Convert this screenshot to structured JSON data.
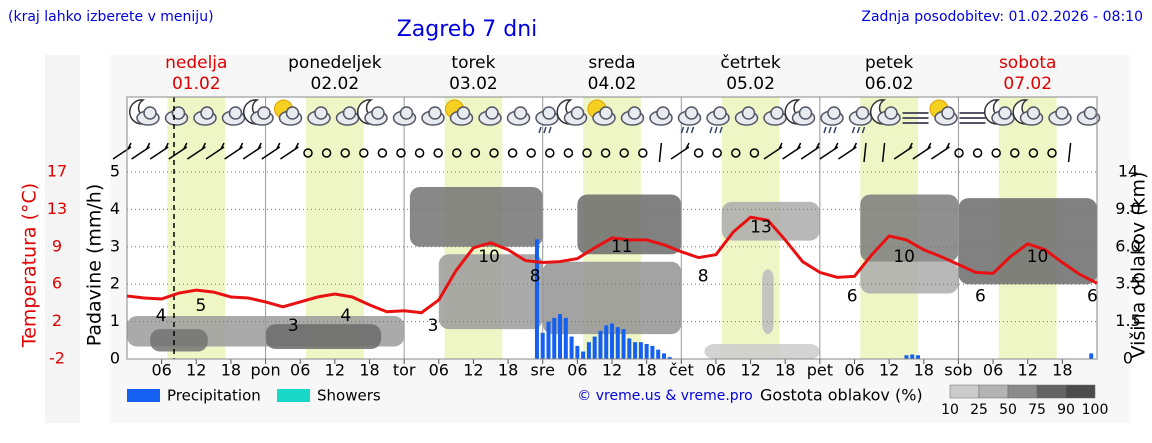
{
  "header": {
    "note": "(kraj lahko izberete v meniju)",
    "title": "Zagreb 7 dni",
    "updated": "Zadnja posodobitev: 01.02.2026 - 08:10"
  },
  "chart_data": {
    "type": "meteogram",
    "days": [
      {
        "name": "nedelja",
        "date": "01.02",
        "color": "#e00000"
      },
      {
        "name": "ponedeljek",
        "date": "02.02",
        "color": "#000000"
      },
      {
        "name": "torek",
        "date": "03.02",
        "color": "#000000"
      },
      {
        "name": "sreda",
        "date": "04.02",
        "color": "#000000"
      },
      {
        "name": "četrtek",
        "date": "05.02",
        "color": "#000000"
      },
      {
        "name": "petek",
        "date": "06.02",
        "color": "#000000"
      },
      {
        "name": "sobota",
        "date": "07.02",
        "color": "#e00000"
      }
    ],
    "xlim": [
      0,
      168
    ],
    "xticks": [
      {
        "value": 6,
        "label": "06"
      },
      12,
      18,
      {
        "value": 24,
        "label": "pon"
      },
      {
        "value": 30,
        "label": "06"
      },
      {
        "value": 36,
        "label": "12"
      },
      {
        "value": 42,
        "label": "18"
      },
      {
        "value": 48,
        "label": "tor"
      },
      {
        "value": 54,
        "label": "06"
      },
      {
        "value": 60,
        "label": "12"
      },
      {
        "value": 66,
        "label": "18"
      },
      {
        "value": 72,
        "label": "sre"
      },
      {
        "value": 78,
        "label": "06"
      },
      {
        "value": 84,
        "label": "12"
      },
      {
        "value": 90,
        "label": "18"
      },
      {
        "value": 96,
        "label": "čet"
      },
      {
        "value": 102,
        "label": "06"
      },
      {
        "value": 108,
        "label": "12"
      },
      {
        "value": 114,
        "label": "18"
      },
      {
        "value": 120,
        "label": "pet"
      },
      {
        "value": 126,
        "label": "06"
      },
      {
        "value": 132,
        "label": "12"
      },
      {
        "value": 138,
        "label": "18"
      },
      {
        "value": 144,
        "label": "sob"
      },
      {
        "value": 150,
        "label": "06"
      },
      {
        "value": 156,
        "label": "12"
      },
      {
        "value": 162,
        "label": "18"
      }
    ],
    "ylabel": "Padavine (mm/h)",
    "ylim": [
      0,
      5
    ],
    "yticks": [
      0,
      1,
      2,
      3,
      4,
      5
    ],
    "grid": true,
    "temp_label": "Temperatura (°C)",
    "temp_lim": [
      -2,
      17
    ],
    "temp_ticks": [
      -2,
      {
        "value": 1.8,
        "label": "2"
      },
      {
        "value": 5.6,
        "label": "6"
      },
      {
        "value": 9.4,
        "label": "9"
      },
      {
        "value": 13.2,
        "label": "13"
      },
      17
    ],
    "temp_color": "#e00000",
    "y2label": "Višina oblakov (km)",
    "y2lim": [
      0,
      14
    ],
    "y2ticks": [
      0,
      1.5,
      3.5,
      {
        "value": 6,
        "label": "6.0"
      },
      {
        "value": 9,
        "label": "9.0"
      },
      14
    ],
    "series": [
      {
        "name": "Precipitation",
        "color": "#1560f0",
        "x": [
          71,
          72,
          73,
          74,
          75,
          76,
          77,
          78,
          79,
          80,
          81,
          82,
          83,
          84,
          85,
          86,
          87,
          88,
          89,
          90,
          91,
          92,
          93,
          94,
          135,
          136,
          137,
          167
        ],
        "values": [
          3.2,
          0.7,
          1.0,
          1.1,
          1.2,
          1.1,
          0.6,
          0.35,
          0.2,
          0.45,
          0.6,
          0.75,
          0.9,
          0.95,
          0.85,
          0.8,
          0.55,
          0.45,
          0.45,
          0.4,
          0.35,
          0.25,
          0.15,
          0.05,
          0.1,
          0.12,
          0.1,
          0.15
        ]
      },
      {
        "name": "Showers",
        "color": "#1ad8c8",
        "x": [],
        "values": []
      }
    ],
    "temperature": {
      "color": "#e81010",
      "x": [
        0,
        3,
        6,
        9,
        12,
        15,
        18,
        21,
        24,
        27,
        30,
        33,
        36,
        39,
        42,
        45,
        48,
        51,
        54,
        57,
        60,
        63,
        66,
        69,
        72,
        75,
        78,
        81,
        84,
        87,
        90,
        93,
        96,
        99,
        102,
        105,
        108,
        111,
        114,
        117,
        120,
        123,
        126,
        129,
        132,
        135,
        138,
        141,
        144,
        147,
        150,
        153,
        156,
        159,
        162,
        165,
        168
      ],
      "values": [
        4.4,
        4.2,
        4.1,
        4.7,
        5.0,
        4.8,
        4.3,
        4.2,
        3.8,
        3.3,
        3.8,
        4.3,
        4.6,
        4.3,
        3.5,
        2.8,
        2.9,
        2.7,
        4.0,
        7.0,
        9.3,
        9.8,
        9.1,
        8.0,
        7.8,
        7.9,
        8.2,
        9.3,
        10.3,
        10.1,
        10.1,
        9.6,
        8.9,
        8.3,
        8.6,
        10.9,
        12.4,
        12.1,
        10.1,
        7.9,
        6.8,
        6.3,
        6.4,
        8.6,
        10.5,
        10.1,
        9.1,
        8.4,
        7.6,
        6.8,
        6.7,
        8.4,
        9.7,
        9.1,
        7.8,
        6.6,
        5.7
      ]
    },
    "temp_labels": [
      {
        "x": 5.9,
        "value": 4
      },
      {
        "x": 12.8,
        "value": 5
      },
      {
        "x": 28.8,
        "value": 3
      },
      {
        "x": 37.9,
        "value": 4
      },
      {
        "x": 53,
        "value": 3
      },
      {
        "x": 62.7,
        "value": 10
      },
      {
        "x": 70.7,
        "value": 8
      },
      {
        "x": 85.7,
        "value": 11
      },
      {
        "x": 99.8,
        "value": 8
      },
      {
        "x": 109.8,
        "value": 13
      },
      {
        "x": 125.6,
        "value": 6
      },
      {
        "x": 134.6,
        "value": 10
      },
      {
        "x": 147.8,
        "value": 6
      },
      {
        "x": 157.7,
        "value": 10
      },
      {
        "x": 167.2,
        "value": 6
      }
    ],
    "clouds": [
      {
        "x": [
          0,
          48
        ],
        "base": 0.5,
        "top": 1.8,
        "density": 50
      },
      {
        "x": [
          4,
          14
        ],
        "base": 0.3,
        "top": 1.2,
        "density": 75
      },
      {
        "x": [
          24,
          44
        ],
        "base": 0.4,
        "top": 1.4,
        "density": 80
      },
      {
        "x": [
          49,
          72
        ],
        "base": 6,
        "top": 12,
        "density": 75
      },
      {
        "x": [
          54,
          72
        ],
        "base": 1.2,
        "top": 5.5,
        "density": 50
      },
      {
        "x": [
          72,
          96
        ],
        "base": 1,
        "top": 5,
        "density": 55
      },
      {
        "x": [
          78,
          96
        ],
        "base": 5.5,
        "top": 11,
        "density": 80
      },
      {
        "x": [
          103,
          120
        ],
        "base": 6.5,
        "top": 10,
        "density": 40
      },
      {
        "x": [
          110,
          112
        ],
        "base": 1,
        "top": 4.5,
        "density": 30
      },
      {
        "x": [
          100,
          120
        ],
        "base": 0,
        "top": 0.6,
        "density": 20
      },
      {
        "x": [
          127,
          144
        ],
        "base": 5,
        "top": 11,
        "density": 70
      },
      {
        "x": [
          127,
          144
        ],
        "base": 3,
        "top": 5,
        "density": 40
      },
      {
        "x": [
          144,
          168
        ],
        "base": 3.5,
        "top": 10.5,
        "density": 80
      }
    ],
    "credit": "© vreme.us & vreme.pro",
    "cloud_title": "Gostota oblakov (%)",
    "cloud_scale": [
      10,
      25,
      50,
      75,
      90,
      100
    ]
  }
}
